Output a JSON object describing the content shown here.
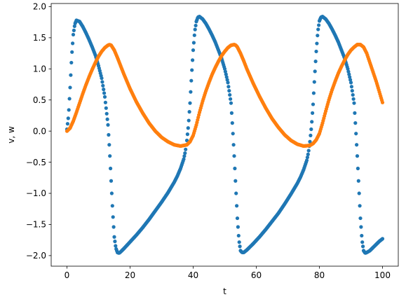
{
  "chart_data": {
    "type": "scatter",
    "xlabel": "t",
    "ylabel": "v, w",
    "xlim": [
      -5,
      105
    ],
    "ylim": [
      -2.17,
      2.05
    ],
    "xticks": [
      0,
      20,
      40,
      60,
      80,
      100
    ],
    "xtick_labels": [
      "0",
      "20",
      "40",
      "60",
      "80",
      "100"
    ],
    "yticks": [
      -2.0,
      -1.5,
      -1.0,
      -0.5,
      0.0,
      0.5,
      1.0,
      1.5,
      2.0
    ],
    "ytick_labels": [
      "−2.0",
      "−1.5",
      "−1.0",
      "−0.5",
      "0.0",
      "0.5",
      "1.0",
      "1.5",
      "2.0"
    ],
    "grid": false,
    "series": [
      {
        "color": "#1f77b4",
        "marker": "circle",
        "sampled_points": {
          "x": [
            0,
            0.5,
            1,
            1.5,
            2,
            2.5,
            3,
            4,
            5,
            6,
            7,
            8,
            9,
            10,
            11,
            12,
            13,
            13.5,
            14,
            14.5,
            15,
            15.5,
            16,
            16.5,
            17,
            18,
            20,
            22,
            24,
            26,
            28,
            30,
            32,
            34,
            35,
            36,
            37,
            37.5,
            38,
            38.5,
            39,
            39.5,
            40,
            40.5,
            41,
            41.5,
            42,
            43,
            44,
            45,
            46,
            47,
            48,
            49,
            50,
            51,
            52,
            52.5,
            53,
            53.5,
            54,
            54.5,
            55,
            55.5,
            56,
            57,
            59,
            61,
            63,
            65,
            67,
            69,
            71,
            73,
            74,
            75,
            76,
            76.5,
            77,
            77.5,
            78,
            78.5,
            79,
            79.5,
            80,
            80.5,
            81,
            82,
            83,
            84,
            85,
            86,
            87,
            88,
            89,
            90,
            91,
            91.5,
            92,
            92.5,
            93,
            93.5,
            94,
            94.5,
            95,
            96,
            97,
            98,
            99,
            100
          ],
          "y": [
            0.03,
            0.25,
            0.7,
            1.2,
            1.55,
            1.72,
            1.78,
            1.76,
            1.68,
            1.58,
            1.47,
            1.35,
            1.22,
            1.05,
            0.85,
            0.55,
            0.1,
            -0.3,
            -0.8,
            -1.3,
            -1.7,
            -1.88,
            -1.95,
            -1.96,
            -1.94,
            -1.89,
            -1.78,
            -1.67,
            -1.55,
            -1.42,
            -1.28,
            -1.14,
            -0.99,
            -0.82,
            -0.72,
            -0.6,
            -0.45,
            -0.33,
            -0.15,
            0.1,
            0.45,
            0.9,
            1.3,
            1.6,
            1.76,
            1.83,
            1.84,
            1.8,
            1.73,
            1.64,
            1.54,
            1.43,
            1.3,
            1.17,
            1.0,
            0.78,
            0.45,
            0.05,
            -0.4,
            -0.9,
            -1.4,
            -1.75,
            -1.92,
            -1.95,
            -1.95,
            -1.91,
            -1.81,
            -1.7,
            -1.58,
            -1.45,
            -1.32,
            -1.17,
            -1.01,
            -0.84,
            -0.74,
            -0.62,
            -0.47,
            -0.35,
            -0.17,
            0.08,
            0.43,
            0.88,
            1.28,
            1.6,
            1.77,
            1.83,
            1.84,
            1.8,
            1.73,
            1.64,
            1.54,
            1.43,
            1.3,
            1.17,
            1.0,
            0.78,
            0.45,
            0.05,
            -0.4,
            -0.9,
            -1.4,
            -1.75,
            -1.92,
            -1.96,
            -1.95,
            -1.92,
            -1.87,
            -1.82,
            -1.77,
            -1.73
          ]
        }
      },
      {
        "color": "#ff7f0e",
        "marker": "circle",
        "sampled_points": {
          "x": [
            0,
            1,
            2,
            3,
            4,
            5,
            6,
            7,
            8,
            9,
            10,
            11,
            12,
            13,
            13.5,
            14,
            15,
            16,
            17,
            18,
            20,
            22,
            24,
            26,
            28,
            30,
            32,
            34,
            36,
            38,
            39,
            40,
            41,
            42,
            43,
            44,
            45,
            46,
            47,
            48,
            49,
            50,
            51,
            52,
            53,
            53.5,
            54,
            55,
            56,
            57,
            59,
            61,
            63,
            65,
            67,
            69,
            71,
            73,
            75,
            77,
            78,
            79,
            80,
            81,
            82,
            83,
            84,
            85,
            86,
            87,
            88,
            89,
            90,
            91,
            92,
            93,
            94,
            95,
            96,
            97,
            98,
            99,
            100
          ],
          "y": [
            0.0,
            0.05,
            0.16,
            0.3,
            0.45,
            0.6,
            0.74,
            0.87,
            0.99,
            1.1,
            1.2,
            1.28,
            1.34,
            1.38,
            1.39,
            1.38,
            1.3,
            1.18,
            1.05,
            0.92,
            0.68,
            0.47,
            0.29,
            0.13,
            0.0,
            -0.1,
            -0.17,
            -0.22,
            -0.24,
            -0.22,
            -0.17,
            -0.07,
            0.1,
            0.3,
            0.48,
            0.64,
            0.78,
            0.91,
            1.02,
            1.12,
            1.21,
            1.28,
            1.34,
            1.38,
            1.39,
            1.38,
            1.35,
            1.25,
            1.13,
            1.0,
            0.77,
            0.56,
            0.37,
            0.2,
            0.06,
            -0.06,
            -0.15,
            -0.21,
            -0.24,
            -0.23,
            -0.2,
            -0.14,
            -0.04,
            0.13,
            0.32,
            0.5,
            0.66,
            0.8,
            0.93,
            1.04,
            1.14,
            1.23,
            1.3,
            1.35,
            1.39,
            1.39,
            1.35,
            1.25,
            1.1,
            0.95,
            0.8,
            0.63,
            0.46
          ]
        }
      }
    ]
  }
}
